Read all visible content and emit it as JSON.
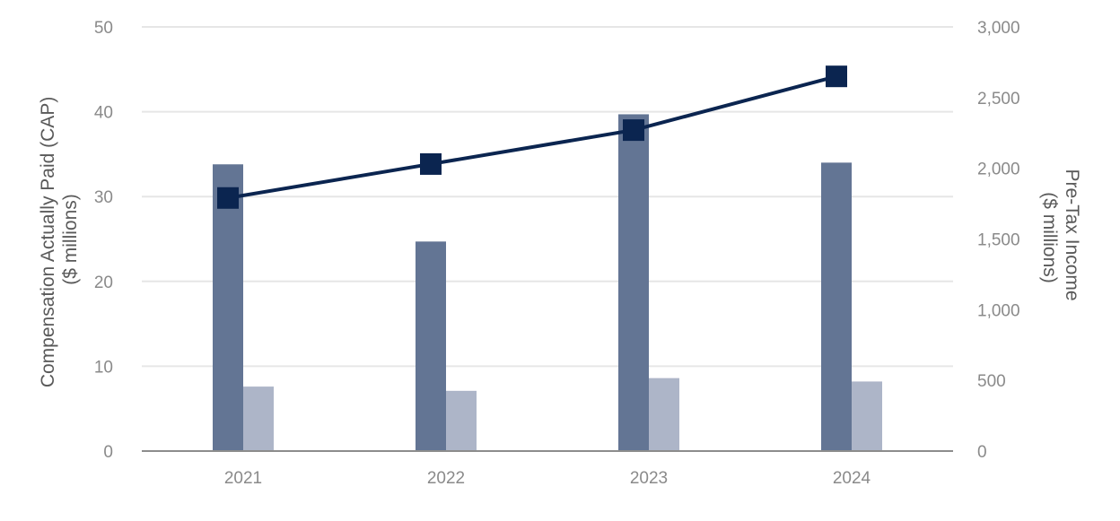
{
  "chart_data": {
    "type": "bar",
    "categories": [
      "2021",
      "2022",
      "2023",
      "2024"
    ],
    "series": [
      {
        "kind": "bar",
        "axis": "left",
        "values": [
          33.8,
          24.7,
          39.7,
          34.0
        ],
        "color": "#637594"
      },
      {
        "kind": "bar",
        "axis": "left",
        "values": [
          7.6,
          7.1,
          8.6,
          8.2
        ],
        "color": "#adb5c8"
      },
      {
        "kind": "line",
        "axis": "right",
        "marker": "square",
        "values": [
          1790,
          2030,
          2270,
          2650
        ],
        "color": "#0b2550"
      }
    ],
    "ylabel_left": [
      "Compensation Actually Paid (CAP)",
      "($ millions)"
    ],
    "ylabel_right": [
      "Pre-Tax Income",
      "($ millions)"
    ],
    "ylim_left": [
      0,
      50
    ],
    "ylim_right": [
      0,
      3000
    ],
    "yticks_left": [
      "0",
      "10",
      "20",
      "30",
      "40",
      "50"
    ],
    "yticks_right": [
      "0",
      "500",
      "1,000",
      "1,500",
      "2,000",
      "2,500",
      "3,000"
    ],
    "grid": true,
    "legend": "none",
    "gridline_color": "#e6e6e6",
    "axis_line_color": "#8c8c8c"
  }
}
